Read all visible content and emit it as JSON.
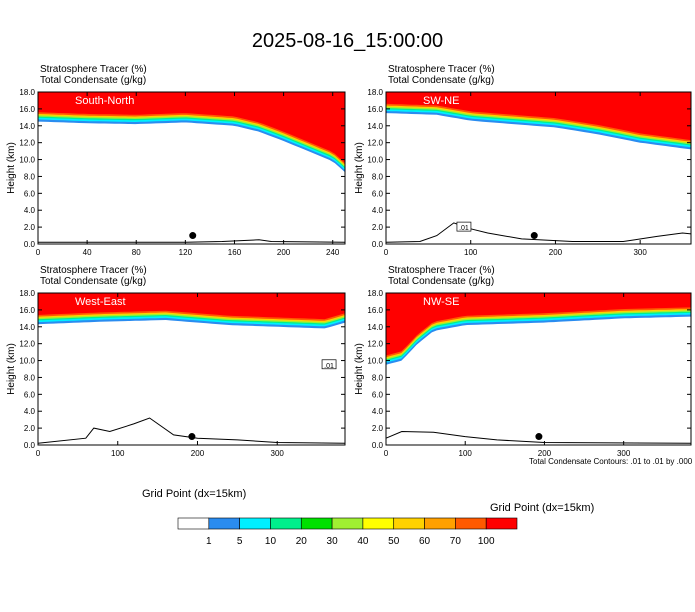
{
  "title": "2025-08-16_15:00:00",
  "colorbar": {
    "colors": [
      "#ffffff",
      "#2a8cf0",
      "#00f0ff",
      "#00f08c",
      "#00e000",
      "#a0f032",
      "#ffff00",
      "#ffd200",
      "#ffa000",
      "#ff5a00",
      "#ff0000"
    ],
    "labels": [
      "1",
      "5",
      "10",
      "20",
      "30",
      "40",
      "50",
      "60",
      "70",
      "100"
    ]
  },
  "footnote": "Total Condensate Contours: .01 to .01 by .000",
  "chart_data": [
    {
      "type": "contour",
      "panel": "South-North",
      "line1": "Stratosphere Tracer   (%)",
      "line2": "Total Condensate   (g/kg)",
      "ylabel": "Height (km)",
      "xlabel": "",
      "xlim": [
        0,
        250
      ],
      "ylim": [
        0,
        18
      ],
      "xticks": [
        "0",
        "40",
        "80",
        "120",
        "160",
        "200",
        "240"
      ],
      "yticks": [
        "0.0",
        "2.0",
        "4.0",
        "6.0",
        "8.0",
        "10.0",
        "12.0",
        "14.0",
        "16.0",
        "18.0"
      ],
      "tracer_base_km": [
        [
          0,
          14.5
        ],
        [
          40,
          14.3
        ],
        [
          80,
          14.2
        ],
        [
          120,
          14.4
        ],
        [
          160,
          14.0
        ],
        [
          180,
          13.3
        ],
        [
          200,
          12.2
        ],
        [
          220,
          11.0
        ],
        [
          240,
          9.8
        ],
        [
          250,
          8.5
        ]
      ],
      "terrain_km": [
        [
          0,
          0.2
        ],
        [
          120,
          0.2
        ],
        [
          150,
          0.3
        ],
        [
          180,
          0.5
        ],
        [
          190,
          0.3
        ],
        [
          250,
          0.2
        ]
      ],
      "marker_x": 126,
      "contour_label": ""
    },
    {
      "type": "contour",
      "panel": "SW-NE",
      "line1": "Stratosphere Tracer   (%)",
      "line2": "Total Condensate   (g/kg)",
      "ylabel": "Height (km)",
      "xlabel": "",
      "xlim": [
        0,
        360
      ],
      "ylim": [
        0,
        18
      ],
      "xticks": [
        "0",
        "100",
        "200",
        "300"
      ],
      "yticks": [
        "0.0",
        "2.0",
        "4.0",
        "6.0",
        "8.0",
        "10.0",
        "12.0",
        "14.0",
        "16.0",
        "18.0"
      ],
      "tracer_base_km": [
        [
          0,
          15.5
        ],
        [
          60,
          15.3
        ],
        [
          100,
          14.6
        ],
        [
          150,
          14.2
        ],
        [
          200,
          13.8
        ],
        [
          250,
          13.0
        ],
        [
          300,
          12.0
        ],
        [
          360,
          11.2
        ]
      ],
      "terrain_km": [
        [
          0,
          0.2
        ],
        [
          40,
          0.3
        ],
        [
          60,
          1.0
        ],
        [
          80,
          2.5
        ],
        [
          100,
          1.8
        ],
        [
          120,
          1.3
        ],
        [
          160,
          0.6
        ],
        [
          220,
          0.3
        ],
        [
          280,
          0.3
        ],
        [
          320,
          0.9
        ],
        [
          350,
          1.3
        ],
        [
          360,
          1.2
        ]
      ],
      "marker_x": 175,
      "contour_label": ".01"
    },
    {
      "type": "contour",
      "panel": "West-East",
      "line1": "Stratosphere Tracer   (%)",
      "line2": "Total Condensate   (g/kg)",
      "ylabel": "Height (km)",
      "xlabel": "Grid Point (dx=15km)",
      "xlim": [
        0,
        385
      ],
      "ylim": [
        0,
        18
      ],
      "xticks": [
        "0",
        "100",
        "200",
        "300"
      ],
      "yticks": [
        "0.0",
        "2.0",
        "4.0",
        "6.0",
        "8.0",
        "10.0",
        "12.0",
        "14.0",
        "16.0",
        "18.0"
      ],
      "tracer_base_km": [
        [
          0,
          14.3
        ],
        [
          80,
          14.6
        ],
        [
          160,
          14.8
        ],
        [
          240,
          14.2
        ],
        [
          300,
          14.0
        ],
        [
          360,
          13.8
        ],
        [
          385,
          14.5
        ]
      ],
      "terrain_km": [
        [
          0,
          0.2
        ],
        [
          60,
          0.8
        ],
        [
          70,
          2.0
        ],
        [
          90,
          1.6
        ],
        [
          120,
          2.5
        ],
        [
          140,
          3.2
        ],
        [
          170,
          1.2
        ],
        [
          200,
          0.8
        ],
        [
          250,
          0.6
        ],
        [
          300,
          0.3
        ],
        [
          385,
          0.2
        ]
      ],
      "marker_x": 193,
      "contour_label": ".01"
    },
    {
      "type": "contour",
      "panel": "NW-SE",
      "line1": "Stratosphere Tracer   (%)",
      "line2": "Total Condensate   (g/kg)",
      "ylabel": "Height (km)",
      "xlabel": "Grid Point (dx=15km)",
      "xlim": [
        0,
        385
      ],
      "ylim": [
        0,
        18
      ],
      "xticks": [
        "0",
        "100",
        "200",
        "300"
      ],
      "yticks": [
        "0.0",
        "2.0",
        "4.0",
        "6.0",
        "8.0",
        "10.0",
        "12.0",
        "14.0",
        "16.0",
        "18.0"
      ],
      "tracer_base_km": [
        [
          0,
          9.5
        ],
        [
          20,
          10.0
        ],
        [
          40,
          12.0
        ],
        [
          60,
          13.5
        ],
        [
          100,
          14.2
        ],
        [
          200,
          14.5
        ],
        [
          300,
          15.0
        ],
        [
          385,
          15.2
        ]
      ],
      "terrain_km": [
        [
          0,
          0.8
        ],
        [
          20,
          1.6
        ],
        [
          60,
          1.5
        ],
        [
          100,
          1.0
        ],
        [
          140,
          0.6
        ],
        [
          200,
          0.3
        ],
        [
          385,
          0.2
        ]
      ],
      "marker_x": 193,
      "contour_label": ""
    }
  ]
}
